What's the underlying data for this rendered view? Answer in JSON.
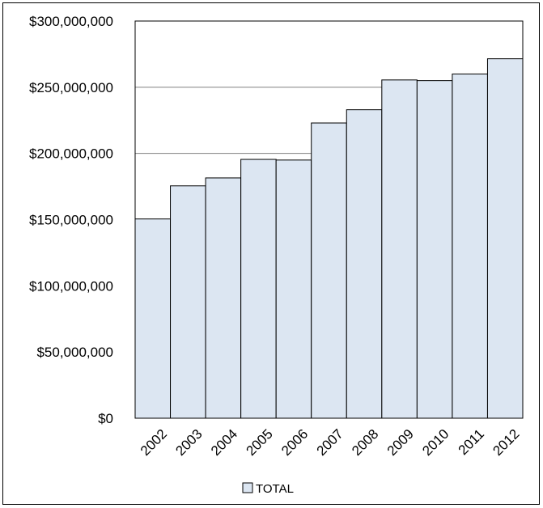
{
  "chart_data": {
    "type": "bar",
    "categories": [
      "2002",
      "2003",
      "2004",
      "2005",
      "2006",
      "2007",
      "2008",
      "2009",
      "2010",
      "2011",
      "2012"
    ],
    "series": [
      {
        "name": "TOTAL",
        "values": [
          150500000,
          175500000,
          181500000,
          195500000,
          195000000,
          223000000,
          233000000,
          255500000,
          255000000,
          260000000,
          271500000
        ]
      }
    ],
    "y_ticks": [
      "$0",
      "$50,000,000",
      "$100,000,000",
      "$150,000,000",
      "$200,000,000",
      "$250,000,000",
      "$300,000,000"
    ],
    "ylim": [
      0,
      300000000
    ],
    "grid": true,
    "legend_position": "bottom",
    "bar_color": "#dce6f2",
    "bar_stroke": "#000000",
    "title": "",
    "xlabel": "",
    "ylabel": ""
  }
}
